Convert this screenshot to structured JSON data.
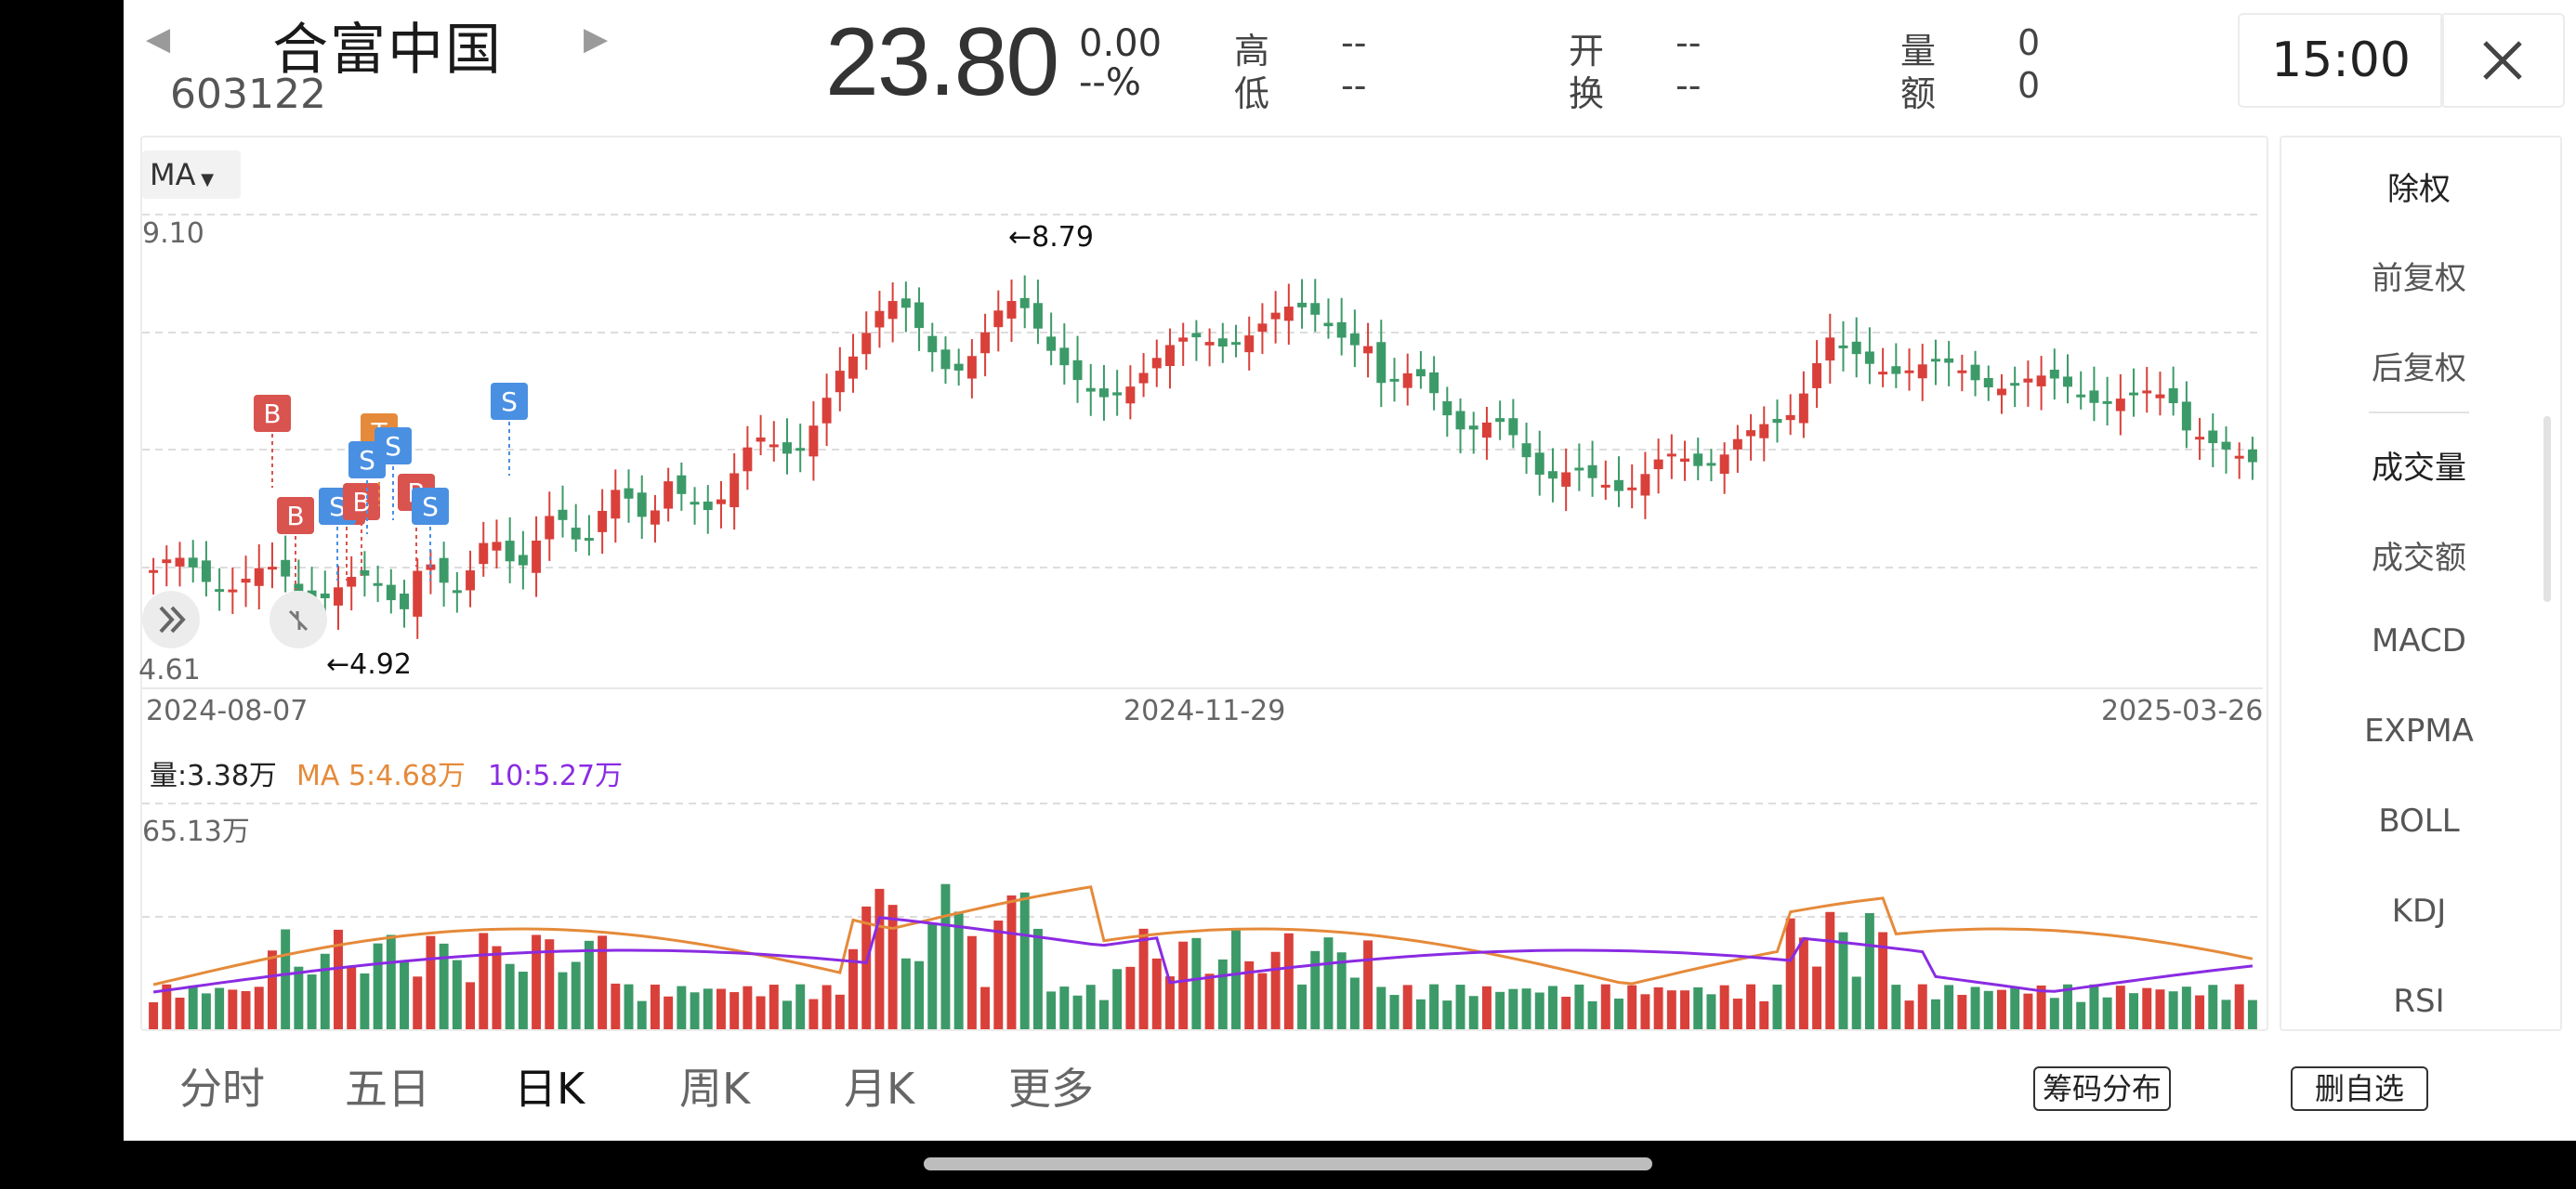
{
  "header": {
    "stock_name": "合富中国",
    "stock_code": "603122",
    "price": "23.80",
    "change": "0.00",
    "change_pct": "--%",
    "quote": {
      "high_label": "高",
      "high_value": "--",
      "low_label": "低",
      "low_value": "--",
      "open_label": "开",
      "open_value": "--",
      "turnover_label": "换",
      "turnover_value": "--",
      "volume_label": "量",
      "volume_value": "0",
      "amount_label": "额",
      "amount_value": "0"
    },
    "time": "15:00"
  },
  "kline": {
    "indicator": "MA",
    "y_max": "9.10",
    "y_min": "4.61",
    "max_marker": "←8.79",
    "min_marker": "←4.92",
    "dates": [
      "2024-08-07",
      "2024-11-29",
      "2025-03-26"
    ],
    "markers": [
      "B",
      "B",
      "B",
      "S",
      "B",
      "T",
      "S",
      "S",
      "B",
      "S",
      "S"
    ]
  },
  "volume": {
    "label": "量:3.38万",
    "ma5": "MA 5:4.68万",
    "ma10": "10:5.27万",
    "y_max": "65.13万"
  },
  "side_menu": [
    "除权",
    "前复权",
    "后复权",
    "成交量",
    "成交额",
    "MACD",
    "EXPMA",
    "BOLL",
    "KDJ",
    "RSI"
  ],
  "tabs": [
    "分时",
    "五日",
    "日K",
    "周K",
    "月K",
    "更多"
  ],
  "buttons": {
    "chips": "筹码分布",
    "remove": "删自选"
  },
  "colors": {
    "up": "#d9403a",
    "down": "#3c9a68",
    "ma5": "#e58a3a",
    "ma10": "#8a2be2",
    "buy": "#d9534f",
    "sell": "#4a90e2"
  }
}
